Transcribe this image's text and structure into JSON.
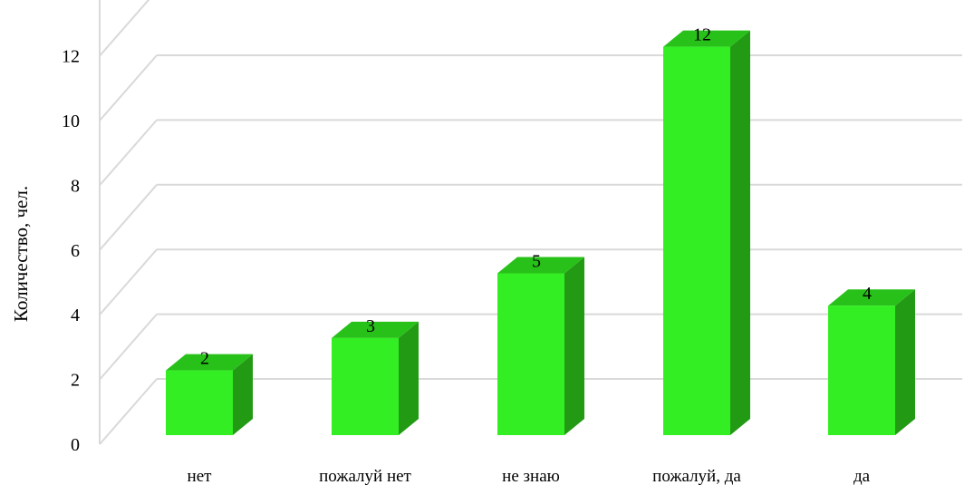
{
  "chart_data": {
    "type": "bar",
    "categories": [
      "нет",
      "пожалуй нет",
      "не знаю",
      "пожалуй, да",
      "да"
    ],
    "values": [
      2,
      3,
      5,
      12,
      4
    ],
    "data_labels": [
      "2",
      "3",
      "5",
      "12",
      "4"
    ],
    "ylabel": "Количество, чел.",
    "xlabel": "",
    "ylim": [
      0,
      12
    ],
    "yticks": [
      "0",
      "2",
      "4",
      "6",
      "8",
      "10",
      "12"
    ],
    "grid": true,
    "style": "3d",
    "colors": {
      "bar_front": "#33ee22",
      "bar_top": "#28c11a",
      "bar_side": "#229a14",
      "grid": "#d9d9d9"
    }
  }
}
